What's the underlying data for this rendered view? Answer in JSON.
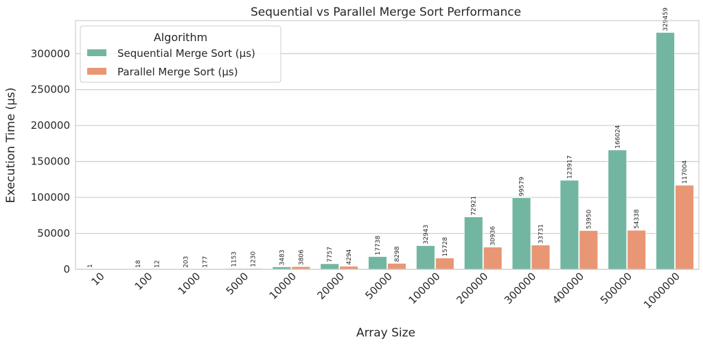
{
  "chart_data": {
    "type": "bar",
    "title": "Sequential vs Parallel Merge Sort Performance",
    "xlabel": "Array Size",
    "ylabel": "Execution Time (µs)",
    "categories": [
      "10",
      "100",
      "1000",
      "5000",
      "10000",
      "20000",
      "50000",
      "100000",
      "200000",
      "300000",
      "400000",
      "500000",
      "1000000"
    ],
    "series": [
      {
        "name": "Sequential Merge Sort (µs)",
        "color": "#72b6a1",
        "values": [
          1,
          18,
          203,
          1153,
          3483,
          7757,
          17738,
          32943,
          72921,
          99579,
          123917,
          166024,
          329459
        ]
      },
      {
        "name": "Parallel Merge Sort (µs)",
        "color": "#e99675",
        "values": [
          0,
          12,
          177,
          1230,
          3806,
          4294,
          8298,
          15728,
          30936,
          33731,
          53950,
          54338,
          117004
        ]
      }
    ],
    "ylim": [
      0,
      346000
    ],
    "yticks": [
      0,
      50000,
      100000,
      150000,
      200000,
      250000,
      300000
    ],
    "grid": "horizontal",
    "legend": {
      "title": "Algorithm",
      "placement": "top-left"
    },
    "xtick_rotation": 45
  }
}
